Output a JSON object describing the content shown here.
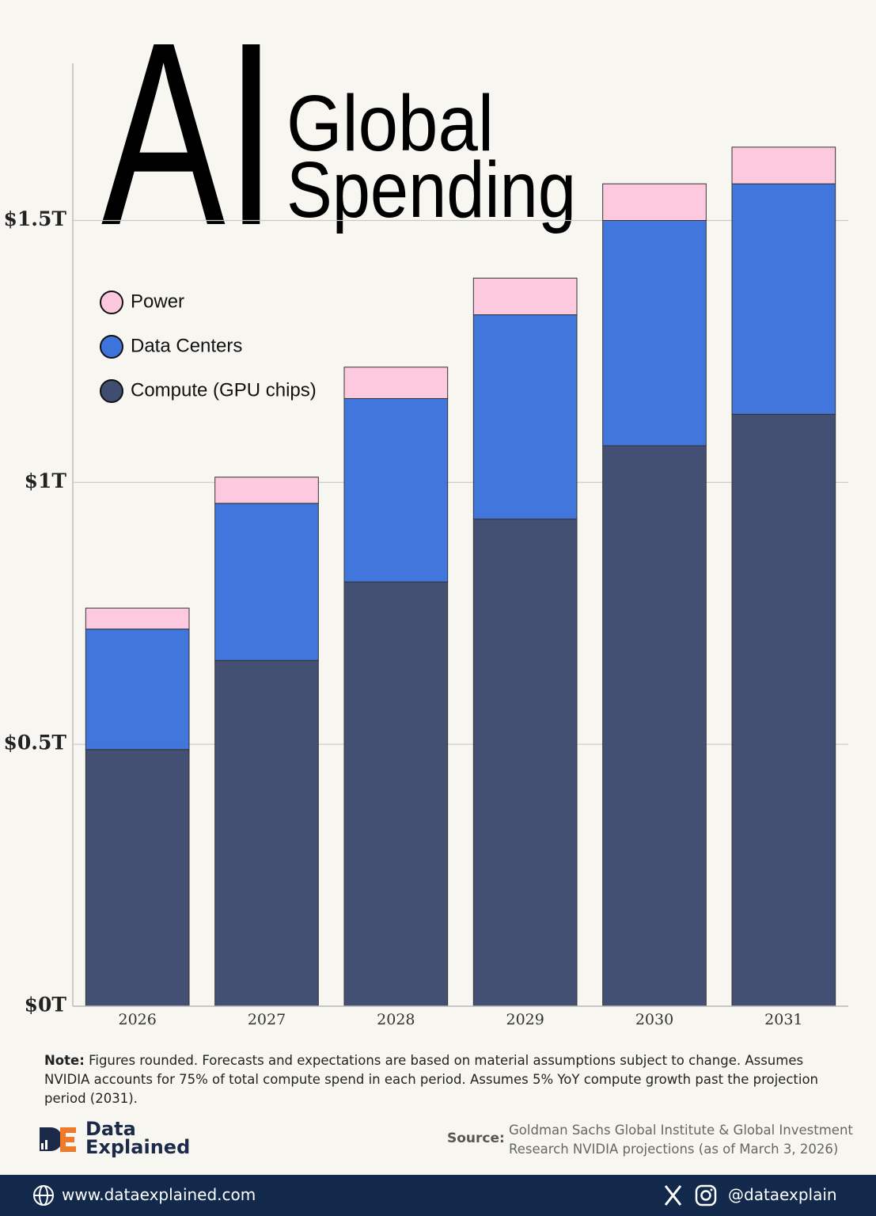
{
  "chart_data": {
    "type": "stacked_bar",
    "title": "AI",
    "subtitle_line1": "Global",
    "subtitle_line2": "Spending",
    "categories": [
      "2026",
      "2027",
      "2028",
      "2029",
      "2030",
      "2031"
    ],
    "series": [
      {
        "name": "Compute (GPU chips)",
        "color": "#3f4d70",
        "values": [
          0.49,
          0.66,
          0.81,
          0.93,
          1.07,
          1.13
        ]
      },
      {
        "name": "Data Centers",
        "color": "#3d74dc",
        "values": [
          0.23,
          0.3,
          0.35,
          0.39,
          0.43,
          0.44
        ]
      },
      {
        "name": "Power",
        "color": "#fdc8de",
        "values": [
          0.04,
          0.05,
          0.06,
          0.07,
          0.07,
          0.07
        ]
      }
    ],
    "ylim": [
      0,
      1.8
    ],
    "yticks": [
      {
        "value": 0,
        "label": "$0T"
      },
      {
        "value": 0.5,
        "label": "$0.5T"
      },
      {
        "value": 1,
        "label": "$1T"
      },
      {
        "value": 1.5,
        "label": "$1.5T"
      }
    ],
    "grid": true
  },
  "note_label": "Note:",
  "note": "Figures rounded. Forecasts and expectations are based on material assumptions subject to change. Assumes NVIDIA accounts for 75% of total compute spend in each period. Assumes 5% YoY compute growth past the projection period (2031).",
  "brand_line1": "Data",
  "brand_line2": "Explained",
  "source_label": "Source:",
  "source": "Goldman Sachs Global Institute & Global Investment Research NVIDIA projections (as of March 3, 2026)",
  "website": "www.dataexplained.com",
  "handle": "@dataexplain"
}
